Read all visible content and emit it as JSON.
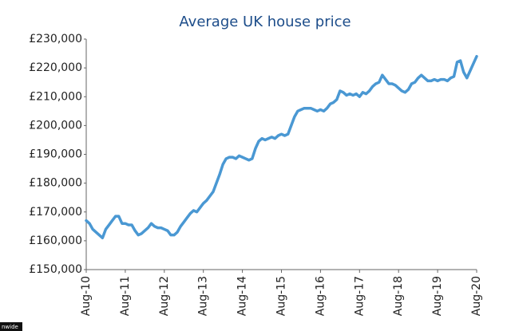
{
  "chart_data": {
    "type": "line",
    "title": "Average UK house price",
    "source": "nwide",
    "categories": [
      "Aug-10",
      null,
      null,
      null,
      null,
      null,
      null,
      null,
      null,
      null,
      null,
      null,
      "Aug-11",
      null,
      null,
      null,
      null,
      null,
      null,
      null,
      null,
      null,
      null,
      null,
      "Aug-12",
      null,
      null,
      null,
      null,
      null,
      null,
      null,
      null,
      null,
      null,
      null,
      "Aug-13",
      null,
      null,
      null,
      null,
      null,
      null,
      null,
      null,
      null,
      null,
      null,
      "Aug-14",
      null,
      null,
      null,
      null,
      null,
      null,
      null,
      null,
      null,
      null,
      null,
      "Aug-15",
      null,
      null,
      null,
      null,
      null,
      null,
      null,
      null,
      null,
      null,
      null,
      "Aug-16",
      null,
      null,
      null,
      null,
      null,
      null,
      null,
      null,
      null,
      null,
      null,
      "Aug-17",
      null,
      null,
      null,
      null,
      null,
      null,
      null,
      null,
      null,
      null,
      null,
      "Aug-18",
      null,
      null,
      null,
      null,
      null,
      null,
      null,
      null,
      null,
      null,
      null,
      "Aug-19",
      null,
      null,
      null,
      null,
      null,
      null,
      null,
      null,
      null,
      null,
      null,
      "Aug-20"
    ],
    "values": [
      167000,
      166000,
      164000,
      163000,
      162000,
      161000,
      164000,
      165500,
      167000,
      168500,
      168500,
      166000,
      166000,
      165500,
      165500,
      163500,
      162000,
      162500,
      163500,
      164500,
      166000,
      165000,
      164500,
      164500,
      164000,
      163500,
      162000,
      162000,
      163000,
      165000,
      166500,
      168000,
      169500,
      170500,
      170000,
      171500,
      173000,
      174000,
      175500,
      177000,
      180000,
      183000,
      186500,
      188500,
      189000,
      189000,
      188500,
      189500,
      189000,
      188500,
      188000,
      188500,
      192000,
      194500,
      195500,
      195000,
      195500,
      196000,
      195500,
      196500,
      197000,
      196500,
      197000,
      200000,
      203000,
      205000,
      205500,
      206000,
      206000,
      206000,
      205500,
      205000,
      205500,
      205000,
      206000,
      207500,
      208000,
      209000,
      212000,
      211500,
      210500,
      211000,
      210500,
      211000,
      210000,
      211500,
      211000,
      212000,
      213500,
      214500,
      215000,
      217500,
      216000,
      214500,
      214500,
      214000,
      213000,
      212000,
      211500,
      212500,
      214500,
      215000,
      216500,
      217500,
      216500,
      215500,
      215500,
      216000,
      215500,
      216000,
      216000,
      215500,
      216500,
      217000,
      222000,
      222500,
      218500,
      216500,
      219000,
      221500,
      224000
    ],
    "color": "#4a98d3",
    "ylim": [
      150000,
      230000
    ],
    "yticks": [
      {
        "value": 150000,
        "label": "£150,000"
      },
      {
        "value": 160000,
        "label": "£160,000"
      },
      {
        "value": 170000,
        "label": "£170,000"
      },
      {
        "value": 180000,
        "label": "£180,000"
      },
      {
        "value": 190000,
        "label": "£190,000"
      },
      {
        "value": 200000,
        "label": "£200,000"
      },
      {
        "value": 210000,
        "label": "£210,000"
      },
      {
        "value": 220000,
        "label": "£220,000"
      },
      {
        "value": 230000,
        "label": "£230,000"
      }
    ],
    "grid": false
  }
}
